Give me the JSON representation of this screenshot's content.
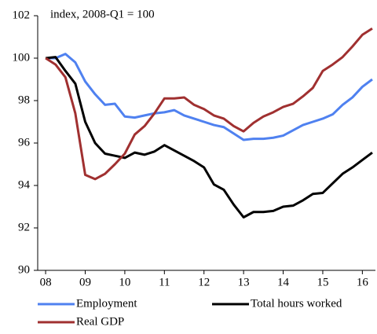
{
  "chart_data": {
    "type": "line",
    "annotation": "index, 2008-Q1 = 100",
    "x": [
      2008,
      2008.25,
      2008.5,
      2008.75,
      2009,
      2009.25,
      2009.5,
      2009.75,
      2010,
      2010.25,
      2010.5,
      2010.75,
      2011,
      2011.25,
      2011.5,
      2011.75,
      2012,
      2012.25,
      2012.5,
      2012.75,
      2013,
      2013.25,
      2013.5,
      2013.75,
      2014,
      2014.25,
      2014.5,
      2014.75,
      2015,
      2015.25,
      2015.5,
      2015.75,
      2016,
      2016.25
    ],
    "series": [
      {
        "name": "Employment",
        "color": "#4f81f0",
        "values": [
          100,
          100,
          100.2,
          99.8,
          98.9,
          98.3,
          97.8,
          97.85,
          97.25,
          97.2,
          97.3,
          97.4,
          97.45,
          97.55,
          97.3,
          97.15,
          97.0,
          96.85,
          96.75,
          96.45,
          96.15,
          96.2,
          96.2,
          96.25,
          96.35,
          96.6,
          96.85,
          97.0,
          97.15,
          97.35,
          97.8,
          98.15,
          98.65,
          99.0
        ]
      },
      {
        "name": "Total hours worked",
        "color": "#000000",
        "values": [
          100,
          100.05,
          99.4,
          98.8,
          97.0,
          96.0,
          95.5,
          95.4,
          95.3,
          95.55,
          95.45,
          95.6,
          95.9,
          95.65,
          95.4,
          95.15,
          94.85,
          94.05,
          93.8,
          93.1,
          92.5,
          92.75,
          92.75,
          92.8,
          93.0,
          93.05,
          93.3,
          93.6,
          93.65,
          94.1,
          94.55,
          94.85,
          95.2,
          95.55
        ]
      },
      {
        "name": "Real GDP",
        "color": "#a03030",
        "values": [
          100,
          99.7,
          99.1,
          97.4,
          94.5,
          94.3,
          94.55,
          95.0,
          95.5,
          96.4,
          96.8,
          97.4,
          98.1,
          98.1,
          98.15,
          97.8,
          97.6,
          97.3,
          97.15,
          96.8,
          96.55,
          96.95,
          97.25,
          97.45,
          97.7,
          97.85,
          98.2,
          98.6,
          99.4,
          99.7,
          100.05,
          100.55,
          101.1,
          101.4
        ]
      }
    ],
    "xlim": [
      2007.8,
      2016.33
    ],
    "xticks": [
      {
        "value": 2008,
        "label": "08"
      },
      {
        "value": 2009,
        "label": "09"
      },
      {
        "value": 2010,
        "label": "10"
      },
      {
        "value": 2011,
        "label": "11"
      },
      {
        "value": 2012,
        "label": "12"
      },
      {
        "value": 2013,
        "label": "13"
      },
      {
        "value": 2014,
        "label": "14"
      },
      {
        "value": 2015,
        "label": "15"
      },
      {
        "value": 2016,
        "label": "16"
      }
    ],
    "ylim": [
      90,
      102
    ],
    "yticks": [
      90,
      92,
      94,
      96,
      98,
      100,
      102
    ]
  }
}
